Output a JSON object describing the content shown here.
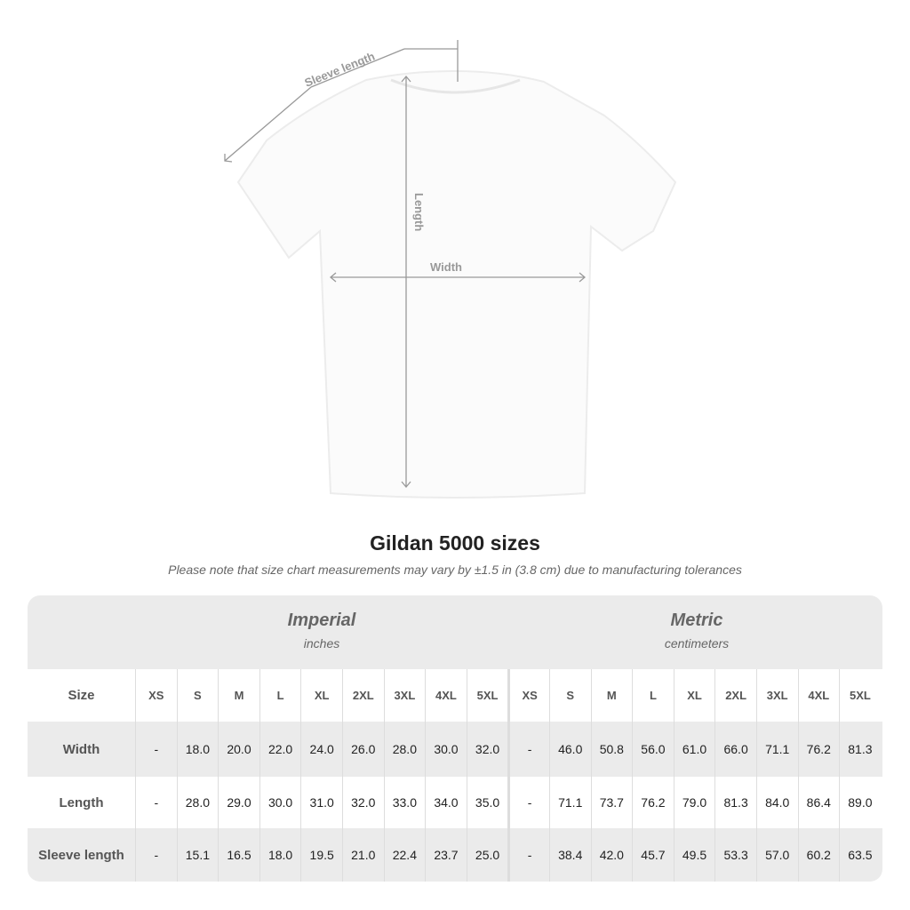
{
  "diagram": {
    "sleeve_label": "Sleeve length",
    "length_label": "Length",
    "width_label": "Width"
  },
  "title": "Gildan 5000 sizes",
  "note": "Please note that size chart measurements may vary by ±1.5 in (3.8 cm) due to manufacturing tolerances",
  "table": {
    "imperial": {
      "heading": "Imperial",
      "unit": "inches"
    },
    "metric": {
      "heading": "Metric",
      "unit": "centimeters"
    },
    "size_label": "Size",
    "sizes": [
      "XS",
      "S",
      "M",
      "L",
      "XL",
      "2XL",
      "3XL",
      "4XL",
      "5XL",
      "XS",
      "S",
      "M",
      "L",
      "XL",
      "2XL",
      "3XL",
      "4XL",
      "5XL"
    ],
    "rows": [
      {
        "label": "Width",
        "values": [
          "-",
          "18.0",
          "20.0",
          "22.0",
          "24.0",
          "26.0",
          "28.0",
          "30.0",
          "32.0",
          "-",
          "46.0",
          "50.8",
          "56.0",
          "61.0",
          "66.0",
          "71.1",
          "76.2",
          "81.3"
        ]
      },
      {
        "label": "Length",
        "values": [
          "-",
          "28.0",
          "29.0",
          "30.0",
          "31.0",
          "32.0",
          "33.0",
          "34.0",
          "35.0",
          "-",
          "71.1",
          "73.7",
          "76.2",
          "79.0",
          "81.3",
          "84.0",
          "86.4",
          "89.0"
        ]
      },
      {
        "label": "Sleeve length",
        "values": [
          "-",
          "15.1",
          "16.5",
          "18.0",
          "19.5",
          "21.0",
          "22.4",
          "23.7",
          "25.0",
          "-",
          "38.4",
          "42.0",
          "45.7",
          "49.5",
          "53.3",
          "57.0",
          "60.2",
          "63.5"
        ]
      }
    ]
  }
}
